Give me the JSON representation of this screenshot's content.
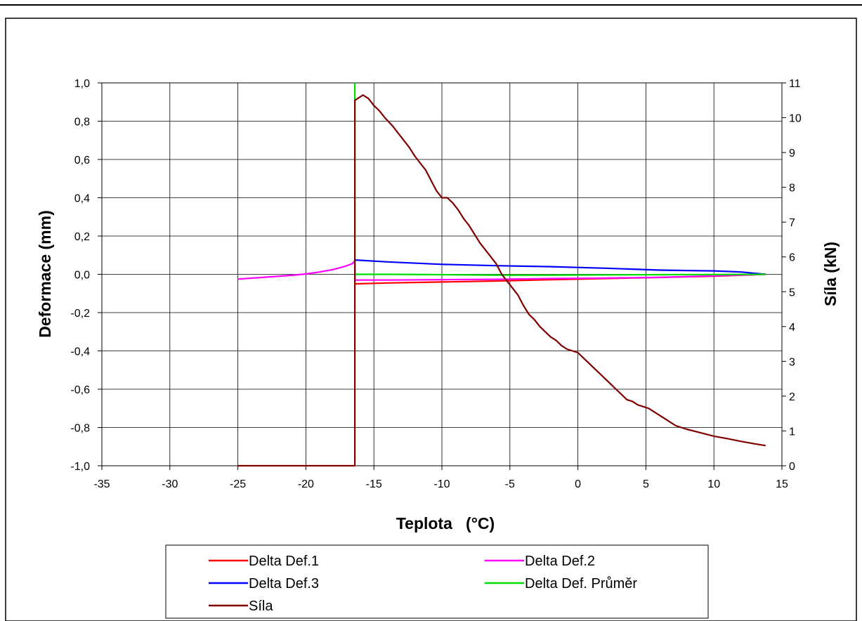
{
  "chart_data": {
    "type": "line",
    "title": "",
    "xlabel": "Teplota   (°C)",
    "ylabel": "Deformace (mm)",
    "y2label": "Síla (kN)",
    "xlim": [
      -35,
      15
    ],
    "ylim": [
      -1.0,
      1.0
    ],
    "y2lim": [
      0,
      11
    ],
    "x_ticks": [
      "-35",
      "-30",
      "-25",
      "-20",
      "-15",
      "-10",
      "-5",
      "0",
      "5",
      "10",
      "15"
    ],
    "y_ticks": [
      "1,0",
      "0,8",
      "0,6",
      "0,4",
      "0,2",
      "0,0",
      "-0,2",
      "-0,4",
      "-0,6",
      "-0,8",
      "-1,0"
    ],
    "y2_ticks": [
      "11",
      "10",
      "9",
      "8",
      "7",
      "6",
      "5",
      "4",
      "3",
      "2",
      "1",
      "0"
    ],
    "grid": true,
    "legend_position": "bottom",
    "series": [
      {
        "name": "Delta Def.1",
        "axis": "left",
        "color": "#ff0000",
        "x": [
          -16.4,
          -16.4,
          -14,
          -10,
          -6,
          -2,
          2,
          6,
          10,
          13.8
        ],
        "y": [
          0.0,
          -0.05,
          -0.045,
          -0.04,
          -0.035,
          -0.028,
          -0.022,
          -0.016,
          -0.01,
          0.0
        ]
      },
      {
        "name": "Delta Def.2",
        "axis": "left",
        "color": "#ff00ff",
        "x": [
          -25,
          -23,
          -21,
          -20,
          -19,
          -18,
          -17.2,
          -16.6,
          -16.4,
          -16.4,
          -14,
          -10,
          -6,
          -2,
          2,
          6,
          10,
          13.8
        ],
        "y": [
          -0.025,
          -0.015,
          -0.005,
          0.002,
          0.012,
          0.025,
          0.04,
          0.055,
          0.07,
          -0.03,
          -0.03,
          -0.028,
          -0.026,
          -0.022,
          -0.02,
          -0.016,
          -0.008,
          0.0
        ]
      },
      {
        "name": "Delta Def.3",
        "axis": "left",
        "color": "#0000ff",
        "x": [
          -16.4,
          -16.4,
          -14,
          -10,
          -6,
          -2,
          2,
          6,
          8,
          10,
          12,
          13.8
        ],
        "y": [
          0.0,
          0.075,
          0.065,
          0.052,
          0.045,
          0.04,
          0.032,
          0.022,
          0.02,
          0.018,
          0.012,
          0.0
        ]
      },
      {
        "name": "Delta Def. Průměr",
        "axis": "left",
        "color": "#00dd00",
        "x": [
          -16.4,
          -16.4,
          -16.4,
          -14,
          -10,
          -6,
          -2,
          2,
          6,
          10,
          13.8
        ],
        "y": [
          1.0,
          0.95,
          0.0,
          0.0,
          -0.002,
          -0.004,
          -0.004,
          -0.003,
          -0.002,
          -0.001,
          0.0
        ]
      },
      {
        "name": "Síla",
        "axis": "right",
        "color": "#800000",
        "x": [
          -25,
          -20,
          -16.4,
          -16.4,
          -16.2,
          -15.8,
          -15.4,
          -15,
          -14.6,
          -14.2,
          -13.6,
          -13.2,
          -12.8,
          -12.4,
          -12,
          -11.6,
          -11.2,
          -10.8,
          -10.4,
          -10,
          -9.6,
          -9.2,
          -8.8,
          -8.4,
          -8,
          -7.6,
          -7.2,
          -6.8,
          -6.4,
          -6,
          -5.6,
          -5.2,
          -4.8,
          -4.4,
          -4,
          -3.6,
          -3.2,
          -2.8,
          -2.4,
          -2,
          -1.6,
          -1.2,
          -0.8,
          -0.4,
          0,
          0.4,
          0.8,
          1.2,
          1.6,
          2,
          2.4,
          2.8,
          3.2,
          3.6,
          4,
          4.4,
          4.8,
          5.2,
          5.6,
          6,
          6.4,
          6.8,
          7.2,
          8,
          9,
          10,
          11,
          12,
          13,
          13.8
        ],
        "y": [
          0.0,
          0.0,
          0.0,
          10.5,
          10.55,
          10.65,
          10.55,
          10.35,
          10.2,
          10.0,
          9.75,
          9.55,
          9.35,
          9.15,
          8.9,
          8.7,
          8.5,
          8.2,
          7.9,
          7.7,
          7.7,
          7.55,
          7.35,
          7.1,
          6.9,
          6.65,
          6.4,
          6.2,
          6.0,
          5.8,
          5.5,
          5.3,
          5.1,
          4.9,
          4.6,
          4.35,
          4.2,
          4.0,
          3.85,
          3.7,
          3.6,
          3.45,
          3.35,
          3.3,
          3.25,
          3.1,
          2.95,
          2.8,
          2.65,
          2.5,
          2.35,
          2.2,
          2.05,
          1.9,
          1.85,
          1.75,
          1.7,
          1.65,
          1.55,
          1.45,
          1.35,
          1.25,
          1.15,
          1.05,
          0.95,
          0.85,
          0.78,
          0.7,
          0.63,
          0.58
        ]
      }
    ]
  }
}
